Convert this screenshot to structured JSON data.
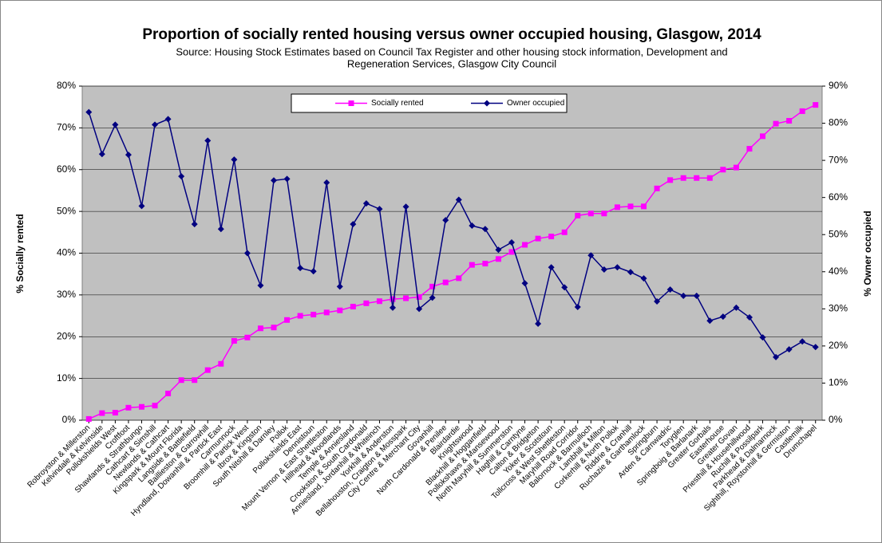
{
  "chart_data": {
    "type": "line",
    "title": "Proportion of socially rented housing versus owner occupied housing, Glasgow, 2014",
    "subtitle": [
      "Source: Housing Stock Estimates based on Council Tax Register and other housing stock information, Development and",
      "Regeneration Services, Glasgow City Council"
    ],
    "y_label": "% Socially rented",
    "y2_label": "% Owner occupied",
    "categories": [
      "Robroyston & Millerston",
      "Kelvindale & Kelvinside",
      "Pollokshields West",
      "Croftfoot",
      "Shawlands & Strathbungo",
      "Cathcart & Simshill",
      "Newlands & Cathcart",
      "Kingspark & Mount Florida",
      "Langside & Battlefield",
      "Baillieston & Garrowhill",
      "Hyndland, Dowanhill & Partick East",
      "Carmunnock",
      "Broomhill & Partick West",
      "Ibrox & Kingston",
      "South Nitshill & Darnley",
      "Pollok",
      "Pollokshields East",
      "Dennistoun",
      "Mount Vernon & East Shettleston",
      "Hillhead & Woodlands",
      "Temple & Anniesland",
      "Crookston & South Cardonald",
      "Anniesland, Jordanhill & Whiteinch",
      "Yorkhill & Anderston",
      "Bellahouston, Craigton & Mosspark",
      "City Centre & Merchant City",
      "Govanhill",
      "North Cardonald & Penilee",
      "Blairdardie",
      "Knightswood",
      "Blackhill & Hogganfield",
      "Pollokshaws & Mansewood",
      "North Maryhill & Summerston",
      "Haghill & Carntyne",
      "Calton & Bridgeton",
      "Yoker & Scotstoun",
      "Tollcross & West Shettleston",
      "Maryhill Road Corridor",
      "Balornock & Barmulloch",
      "Lambhill & Milton",
      "Corkerhill & North Pollok",
      "Riddrie & Cranhill",
      "Ruchazie & Garthamlock",
      "Springburn",
      "Arden & Carnwadric",
      "Toryglen",
      "Springboig & Barlanark",
      "Greater Gorbals",
      "Easterhouse",
      "Greater Govan",
      "Priesthill & Househillwood",
      "Ruchill & Possilpark",
      "Parkhead & Dalmarnock",
      "Sighthill, Roystonhill & Germiston",
      "Castlemilk",
      "Drumchapel"
    ],
    "series": [
      {
        "name": "Socially rented",
        "color": "#ff00ff",
        "marker": "square",
        "values": [
          0.3,
          1.7,
          1.8,
          3.0,
          3.2,
          3.5,
          6.4,
          9.6,
          9.6,
          12.0,
          13.5,
          19.0,
          19.8,
          22.0,
          22.2,
          24.0,
          25.0,
          25.3,
          25.8,
          26.3,
          27.2,
          28.0,
          28.5,
          29.0,
          29.2,
          29.5,
          32.0,
          33.0,
          34.0,
          37.2,
          37.5,
          38.6,
          40.3,
          42.0,
          43.5,
          44.0,
          45.0,
          49.0,
          49.5,
          49.5,
          51.0,
          51.2,
          51.2,
          55.5,
          57.5,
          58.0,
          58.0,
          58.0,
          60.0,
          60.5,
          65.0,
          68.0,
          71.0,
          71.7,
          74.0,
          75.5
        ]
      },
      {
        "name": "Owner occupied",
        "color": "#000080",
        "marker": "diamond",
        "axis": "y2",
        "values": [
          83.0,
          71.7,
          79.6,
          71.5,
          57.7,
          79.6,
          81.1,
          65.7,
          52.8,
          75.3,
          51.5,
          70.2,
          45.0,
          36.3,
          64.6,
          65.0,
          41.0,
          40.1,
          64.0,
          36.0,
          52.8,
          58.4,
          56.9,
          30.3,
          57.5,
          30.0,
          33.0,
          53.9,
          59.4,
          52.4,
          51.5,
          45.9,
          47.9,
          36.9,
          26.0,
          41.2,
          35.8,
          30.5,
          44.4,
          40.6,
          41.2,
          39.9,
          38.2,
          32.0,
          35.2,
          33.5,
          33.5,
          26.8,
          27.9,
          30.3,
          27.7,
          22.3,
          17.0,
          19.1,
          21.2,
          19.7
        ]
      }
    ],
    "ylim": [
      0,
      80
    ],
    "yticks": [
      {
        "value": 0,
        "label": "0%"
      },
      {
        "value": 10,
        "label": "10%"
      },
      {
        "value": 20,
        "label": "20%"
      },
      {
        "value": 30,
        "label": "30%"
      },
      {
        "value": 40,
        "label": "40%"
      },
      {
        "value": 50,
        "label": "50%"
      },
      {
        "value": 60,
        "label": "60%"
      },
      {
        "value": 70,
        "label": "70%"
      },
      {
        "value": 80,
        "label": "80%"
      }
    ],
    "y2lim": [
      0,
      90
    ],
    "y2ticks": [
      {
        "value": 0,
        "label": "0%"
      },
      {
        "value": 10,
        "label": "10%"
      },
      {
        "value": 20,
        "label": "20%"
      },
      {
        "value": 30,
        "label": "30%"
      },
      {
        "value": 40,
        "label": "40%"
      },
      {
        "value": 50,
        "label": "50%"
      },
      {
        "value": 60,
        "label": "60%"
      },
      {
        "value": 70,
        "label": "70%"
      },
      {
        "value": 80,
        "label": "80%"
      },
      {
        "value": 90,
        "label": "90%"
      }
    ],
    "grid": true
  }
}
